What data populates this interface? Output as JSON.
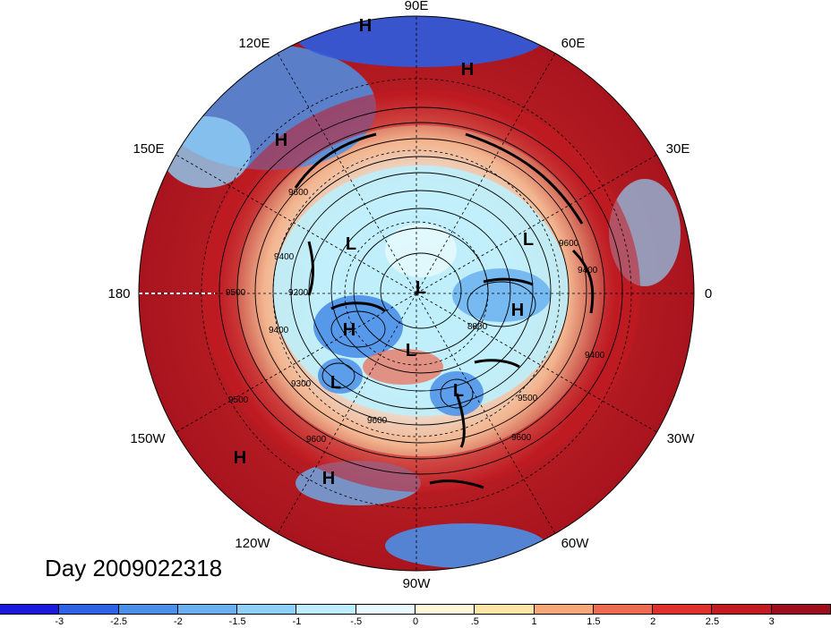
{
  "title_day": "Day 2009022318",
  "longitude_labels": [
    {
      "text": "90E"
    },
    {
      "text": "60E"
    },
    {
      "text": "30E"
    },
    {
      "text": "0"
    },
    {
      "text": "30W"
    },
    {
      "text": "60W"
    },
    {
      "text": "90W"
    },
    {
      "text": "120W"
    },
    {
      "text": "150W"
    },
    {
      "text": "180"
    },
    {
      "text": "150E"
    },
    {
      "text": "120E"
    }
  ],
  "pressure_centers": [
    {
      "type": "H"
    },
    {
      "type": "H"
    },
    {
      "type": "H"
    },
    {
      "type": "L"
    },
    {
      "type": "L"
    },
    {
      "type": "L"
    },
    {
      "type": "H"
    },
    {
      "type": "H"
    },
    {
      "type": "L"
    },
    {
      "type": "L"
    },
    {
      "type": "L"
    },
    {
      "type": "H"
    },
    {
      "type": "H"
    }
  ],
  "contour_labels": [
    "9600",
    "9400",
    "9500",
    "9200",
    "9400",
    "9300",
    "9600",
    "9500",
    "9600",
    "9400",
    "9600",
    "9500",
    "9400",
    "9600",
    "8800"
  ],
  "colorbar": {
    "ticks": [
      "-3",
      "-2.5",
      "-2",
      "-1.5",
      "-1",
      "-.5",
      "0",
      ".5",
      "1",
      "1.5",
      "2",
      "2.5",
      "3"
    ],
    "colors": [
      "#1a1adc",
      "#2f63e6",
      "#4a8fe8",
      "#6ab0f0",
      "#8ed0f6",
      "#bdeefb",
      "#e8fafd",
      "#fdf8d8",
      "#fde5a6",
      "#f6a878",
      "#ee6a50",
      "#e0302e",
      "#c41a22",
      "#9e0f1e"
    ]
  }
}
